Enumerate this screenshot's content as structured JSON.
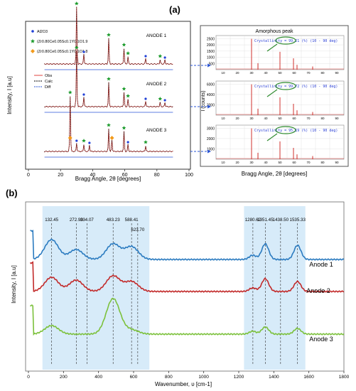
{
  "panels": {
    "a": "(a)",
    "b": "(b)"
  },
  "chart_data": [
    {
      "type": "line",
      "panel": "(a)",
      "xlabel": "Bragg Angle, 2θ [degrees]",
      "ylabel": "Intensity, I [a.u]",
      "xlim": [
        0,
        100
      ],
      "xticks": [
        0,
        20,
        40,
        60,
        80,
        100
      ],
      "legend": [
        {
          "marker": "dot",
          "color": "#1f3fd6",
          "label": "Al2O3"
        },
        {
          "marker": "star",
          "color": "#1a9a2a",
          "label": "(Zr0.80Ce0.05Sc0.1Y0.1O1.9"
        },
        {
          "marker": "diamond",
          "color": "#f29a1c",
          "label": "(Zr0.80Ce0.05Sc0.1Y0.1O1.8"
        }
      ],
      "line_legend": [
        {
          "label": "Obs",
          "color": "#e0433f"
        },
        {
          "label": "Calc",
          "color": "#000000"
        },
        {
          "label": "Diff",
          "color": "#2a55d6"
        }
      ],
      "series": [
        {
          "name": "ANODE 1",
          "peaks_2theta": [
            30,
            34.5,
            50,
            59.5,
            62,
            73,
            82,
            85
          ]
        },
        {
          "name": "ANODE 2",
          "peaks_2theta": [
            30,
            34.5,
            50,
            59.5,
            62,
            73,
            82,
            85
          ]
        },
        {
          "name": "ANODE 3",
          "peaks_2theta": [
            26,
            30,
            34.5,
            38,
            50,
            52,
            59.5,
            62,
            73
          ]
        }
      ]
    },
    {
      "type": "line",
      "title": "Amorphous peak",
      "ylabel": "I (counts)",
      "xticks": [
        10,
        20,
        30,
        40,
        50,
        60,
        70,
        80,
        90
      ],
      "subplots": [
        {
          "annotation": "Crystallinity = 99.21 (%) (10 - 90 deg)",
          "yticks": [
            500,
            1000,
            1500,
            2000,
            2500
          ]
        },
        {
          "annotation": "Crystallinity = 99.72 (%) (10 - 90 deg)",
          "yticks": [
            2000,
            4000,
            6000
          ]
        },
        {
          "annotation": "Crystallinity = 95.19 (%) (10 - 90 deg)",
          "yticks": [
            1000,
            2000,
            3000
          ]
        }
      ]
    },
    {
      "type": "line",
      "panel": "(b)",
      "xlabel": "Wavenumber, υ [cm-1]",
      "ylabel": "Intensity, I [a.u]",
      "xlim": [
        0,
        1800
      ],
      "xticks": [
        0,
        200,
        400,
        600,
        800,
        1000,
        1200,
        1400,
        1600,
        1800
      ],
      "peak_labels": [
        132.45,
        272.9,
        334.07,
        483.23,
        588.41,
        623.7,
        1280.62,
        1351.45,
        1438.5,
        1535.33
      ],
      "peak_label_text": [
        "132.45",
        "272.90",
        "334.07",
        "483.23",
        "588.41",
        "623.70",
        "1280.62",
        "1351.45",
        "1438.50",
        "1535.33"
      ],
      "shaded_ranges": [
        [
          80,
          690
        ],
        [
          1230,
          1580
        ]
      ],
      "series": [
        {
          "name": "Anode 1",
          "color": "#2b7bc0"
        },
        {
          "name": "Anode 2",
          "color": "#c22a2a"
        },
        {
          "name": "Anode 3",
          "color": "#7cc13c"
        }
      ]
    }
  ]
}
